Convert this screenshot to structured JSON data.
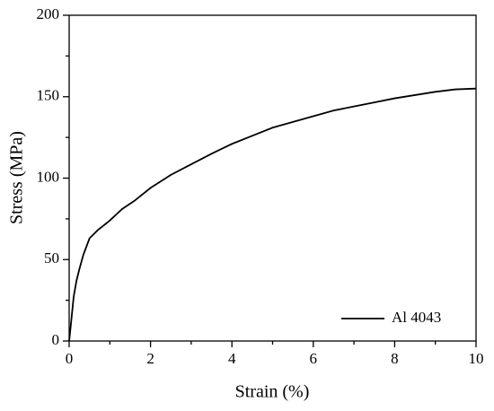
{
  "chart_data": {
    "type": "line",
    "xlabel": "Strain (%)",
    "ylabel": "Stress (MPa)",
    "x": [
      0,
      0.05,
      0.11,
      0.18,
      0.25,
      0.35,
      0.5,
      0.7,
      1,
      1.3,
      1.6,
      2,
      2.5,
      3,
      3.5,
      4,
      4.5,
      5,
      5.5,
      6,
      6.5,
      7,
      7.5,
      8,
      8.5,
      9,
      9.5,
      10
    ],
    "series": [
      {
        "name": "Al 4043",
        "color": "#000000",
        "values": [
          0,
          12,
          27,
          37,
          44,
          53,
          63,
          68,
          74,
          81,
          86,
          94,
          102,
          108.5,
          115,
          121,
          126,
          131,
          134.5,
          138,
          141.5,
          144,
          146.5,
          149,
          151,
          153,
          154.5,
          155
        ]
      }
    ],
    "xlim": [
      0,
      10
    ],
    "xticks": [
      0,
      2,
      4,
      6,
      8,
      10
    ],
    "xminorticks": [
      1,
      3,
      5,
      7,
      9
    ],
    "ylim": [
      0,
      200
    ],
    "yticks": [
      0,
      50,
      100,
      150,
      200
    ],
    "yminorticks": [
      25,
      75,
      125,
      175
    ],
    "legend": "lower right"
  }
}
